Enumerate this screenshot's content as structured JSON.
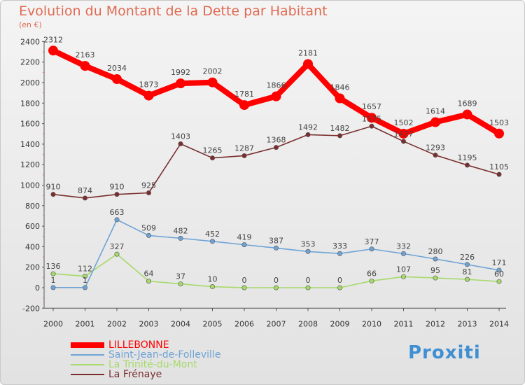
{
  "title": "Evolution du Montant de la Dette par Habitant",
  "subtitle": "(en €)",
  "brand": "Proxiti",
  "colors": {
    "LILLEBONNE": "#ff0000",
    "Saint-Jean-de-Folleville": "#6fa3d6",
    "La Trinité-du-Mont": "#a6d96a",
    "La Frénaye": "#7a2e2e",
    "axis": "#555555",
    "background": "#efefef"
  },
  "chart_data": {
    "type": "line",
    "x": [
      "2000",
      "2001",
      "2002",
      "2003",
      "2004",
      "2005",
      "2006",
      "2007",
      "2008",
      "2009",
      "2010",
      "2011",
      "2012",
      "2013",
      "2014"
    ],
    "ylim": [
      -200,
      2400
    ],
    "yticks": [
      -200,
      0,
      200,
      400,
      600,
      800,
      1000,
      1200,
      1400,
      1600,
      1800,
      2000,
      2200,
      2400
    ],
    "grid": false,
    "legend_position": "bottom-left",
    "series": [
      {
        "name": "LILLEBONNE",
        "values": [
          2312,
          2163,
          2034,
          1873,
          1992,
          2002,
          1781,
          1866,
          2181,
          1846,
          1657,
          1502,
          1614,
          1689,
          1503
        ]
      },
      {
        "name": "Saint-Jean-de-Folleville",
        "values": [
          1,
          1,
          663,
          509,
          482,
          452,
          419,
          387,
          353,
          333,
          377,
          332,
          280,
          226,
          171
        ]
      },
      {
        "name": "La Trinité-du-Mont",
        "values": [
          136,
          112,
          327,
          64,
          37,
          10,
          0,
          0,
          0,
          0,
          66,
          107,
          95,
          81,
          60
        ]
      },
      {
        "name": "La Frénaye",
        "values": [
          910,
          874,
          910,
          925,
          1403,
          1265,
          1287,
          1368,
          1492,
          1482,
          1575,
          1427,
          1293,
          1195,
          1105
        ]
      }
    ]
  }
}
